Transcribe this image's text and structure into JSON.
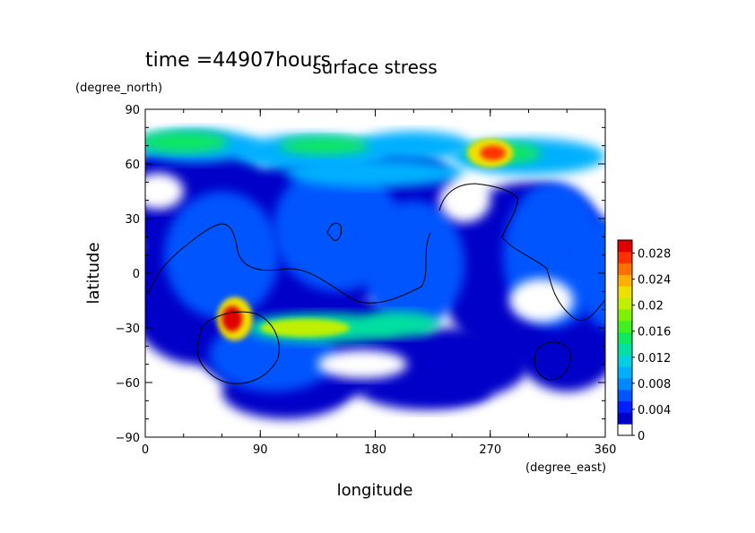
{
  "chart_data": {
    "type": "heatmap",
    "time_label": "time =44907hours",
    "title": "surface stress",
    "xlabel": "longitude",
    "ylabel": "latitude",
    "x_units": "(degree_east)",
    "y_units": "(degree_north)",
    "xlim": [
      0,
      360
    ],
    "ylim": [
      -90,
      90
    ],
    "x_ticks": [
      0,
      90,
      180,
      270,
      360
    ],
    "y_ticks": [
      90,
      60,
      30,
      0,
      -30,
      -60,
      -90
    ],
    "x_tick_labels": [
      "0",
      "90",
      "180",
      "270",
      "360"
    ],
    "y_tick_labels": [
      "90",
      "60",
      "30",
      "0",
      "−30",
      "−60",
      "−90"
    ],
    "colorbar": {
      "min": 0,
      "max": 0.03,
      "tick_values": [
        0,
        0.004,
        0.008,
        0.012,
        0.016,
        0.02,
        0.024,
        0.028
      ],
      "tick_labels": [
        "0",
        "0.004",
        "0.008",
        "0.012",
        "0.016",
        "0.02",
        "0.024",
        "0.028"
      ],
      "colors": [
        "#ffffff",
        "#0000c8",
        "#0020ff",
        "#0055ff",
        "#0088ff",
        "#00b0ff",
        "#00d0e0",
        "#00e0a0",
        "#10e860",
        "#40f020",
        "#80f000",
        "#c0f000",
        "#f0e000",
        "#ffb000",
        "#ff7000",
        "#ff3000",
        "#e00000"
      ]
    },
    "grid": false,
    "features": [
      {
        "region": "northern band",
        "lat_range": [
          60,
          85
        ],
        "lon_range": [
          0,
          360
        ],
        "peak": 0.018
      },
      {
        "region": "high near",
        "lon": 270,
        "lat": 66,
        "peak": 0.03
      },
      {
        "region": "high near",
        "lon": 70,
        "lat": -25,
        "peak": 0.03
      },
      {
        "region": "southern band",
        "lat_range": [
          -35,
          -20
        ],
        "lon_range": [
          80,
          210
        ],
        "peak": 0.02
      },
      {
        "region": "tropical fields",
        "lat_range": [
          -60,
          50
        ],
        "lon_range": [
          0,
          360
        ],
        "peak": 0.01
      }
    ]
  }
}
